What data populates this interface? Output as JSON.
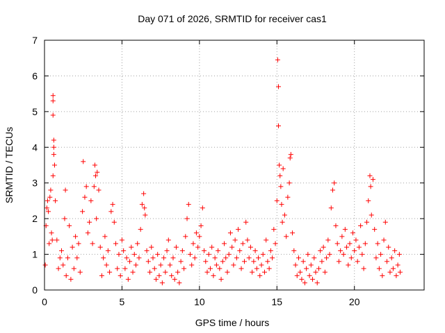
{
  "chart_data": {
    "type": "scatter",
    "title": "Day 071 of 2026, SRMTID for receiver cas1",
    "xlabel": "GPS time / hours",
    "ylabel": "SRMTID / TECUs",
    "xlim": [
      0,
      24.5
    ],
    "ylim": [
      0,
      7
    ],
    "xticks": [
      0,
      5,
      10,
      15,
      20
    ],
    "yticks": [
      0,
      1,
      2,
      3,
      4,
      5,
      6,
      7
    ],
    "grid": true,
    "marker": "+",
    "color": "#ff0000",
    "series": [
      {
        "name": "SRMTID",
        "points": [
          [
            0.05,
            0.7
          ],
          [
            0.1,
            1.8
          ],
          [
            0.15,
            2.3
          ],
          [
            0.2,
            2.5
          ],
          [
            0.25,
            2.2
          ],
          [
            0.3,
            1.3
          ],
          [
            0.35,
            2.6
          ],
          [
            0.4,
            2.8
          ],
          [
            0.45,
            1.6
          ],
          [
            0.5,
            1.4
          ],
          [
            0.55,
            3.2
          ],
          [
            0.55,
            4.9
          ],
          [
            0.55,
            5.3
          ],
          [
            0.55,
            5.45
          ],
          [
            0.6,
            4.0
          ],
          [
            0.6,
            4.2
          ],
          [
            0.6,
            3.8
          ],
          [
            0.65,
            3.5
          ],
          [
            0.7,
            2.5
          ],
          [
            0.8,
            1.4
          ],
          [
            0.9,
            0.6
          ],
          [
            1.0,
            0.9
          ],
          [
            1.1,
            1.1
          ],
          [
            1.2,
            0.7
          ],
          [
            1.3,
            2.0
          ],
          [
            1.35,
            2.8
          ],
          [
            1.4,
            0.4
          ],
          [
            1.5,
            0.9
          ],
          [
            1.6,
            1.8
          ],
          [
            1.7,
            0.3
          ],
          [
            1.8,
            1.2
          ],
          [
            1.9,
            0.6
          ],
          [
            2.0,
            1.5
          ],
          [
            2.1,
            0.9
          ],
          [
            2.2,
            1.3
          ],
          [
            2.3,
            0.5
          ],
          [
            2.45,
            2.2
          ],
          [
            2.5,
            3.6
          ],
          [
            2.6,
            2.6
          ],
          [
            2.7,
            2.9
          ],
          [
            2.8,
            1.6
          ],
          [
            2.9,
            1.9
          ],
          [
            3.0,
            2.5
          ],
          [
            3.1,
            1.3
          ],
          [
            3.2,
            2.9
          ],
          [
            3.25,
            3.5
          ],
          [
            3.3,
            3.2
          ],
          [
            3.35,
            2.0
          ],
          [
            3.4,
            3.3
          ],
          [
            3.5,
            2.8
          ],
          [
            3.6,
            1.2
          ],
          [
            3.7,
            0.4
          ],
          [
            3.8,
            0.9
          ],
          [
            3.9,
            1.5
          ],
          [
            4.0,
            0.7
          ],
          [
            4.1,
            1.1
          ],
          [
            4.2,
            0.5
          ],
          [
            4.3,
            2.2
          ],
          [
            4.4,
            2.4
          ],
          [
            4.5,
            1.9
          ],
          [
            4.6,
            1.3
          ],
          [
            4.7,
            0.6
          ],
          [
            4.8,
            1.0
          ],
          [
            4.9,
            0.4
          ],
          [
            5.0,
            1.4
          ],
          [
            5.1,
            1.1
          ],
          [
            5.2,
            0.6
          ],
          [
            5.3,
            0.9
          ],
          [
            5.4,
            0.3
          ],
          [
            5.5,
            0.8
          ],
          [
            5.6,
            1.2
          ],
          [
            5.7,
            0.5
          ],
          [
            5.8,
            1.0
          ],
          [
            5.9,
            0.7
          ],
          [
            6.0,
            1.3
          ],
          [
            6.1,
            0.9
          ],
          [
            6.2,
            1.7
          ],
          [
            6.3,
            2.4
          ],
          [
            6.4,
            2.7
          ],
          [
            6.45,
            2.3
          ],
          [
            6.5,
            2.1
          ],
          [
            6.6,
            1.1
          ],
          [
            6.7,
            0.8
          ],
          [
            6.8,
            0.5
          ],
          [
            6.9,
            1.2
          ],
          [
            7.0,
            0.9
          ],
          [
            7.1,
            0.6
          ],
          [
            7.2,
            0.3
          ],
          [
            7.3,
            1.0
          ],
          [
            7.4,
            0.4
          ],
          [
            7.5,
            0.7
          ],
          [
            7.6,
            0.2
          ],
          [
            7.7,
            0.9
          ],
          [
            7.8,
            0.5
          ],
          [
            7.9,
            1.1
          ],
          [
            8.0,
            1.4
          ],
          [
            8.1,
            0.7
          ],
          [
            8.2,
            0.4
          ],
          [
            8.3,
            0.9
          ],
          [
            8.4,
            0.3
          ],
          [
            8.5,
            1.2
          ],
          [
            8.6,
            0.5
          ],
          [
            8.7,
            0.2
          ],
          [
            8.8,
            0.8
          ],
          [
            8.9,
            1.1
          ],
          [
            9.0,
            0.6
          ],
          [
            9.1,
            1.5
          ],
          [
            9.2,
            2.0
          ],
          [
            9.3,
            2.4
          ],
          [
            9.4,
            1.0
          ],
          [
            9.5,
            0.7
          ],
          [
            9.6,
            1.3
          ],
          [
            9.7,
            0.9
          ],
          [
            9.8,
            1.6
          ],
          [
            9.9,
            1.2
          ],
          [
            10.0,
            1.5
          ],
          [
            10.1,
            1.8
          ],
          [
            10.2,
            2.3
          ],
          [
            10.3,
            1.1
          ],
          [
            10.4,
            0.8
          ],
          [
            10.5,
            0.5
          ],
          [
            10.6,
            1.0
          ],
          [
            10.7,
            0.6
          ],
          [
            10.8,
            1.2
          ],
          [
            10.9,
            0.4
          ],
          [
            11.0,
            0.9
          ],
          [
            11.1,
            0.7
          ],
          [
            11.2,
            1.1
          ],
          [
            11.3,
            0.6
          ],
          [
            11.4,
            0.3
          ],
          [
            11.5,
            0.8
          ],
          [
            11.6,
            1.3
          ],
          [
            11.7,
            0.9
          ],
          [
            11.8,
            0.5
          ],
          [
            11.9,
            1.0
          ],
          [
            12.0,
            1.6
          ],
          [
            12.1,
            1.2
          ],
          [
            12.2,
            0.7
          ],
          [
            12.3,
            1.4
          ],
          [
            12.4,
            0.9
          ],
          [
            12.5,
            1.7
          ],
          [
            12.6,
            1.1
          ],
          [
            12.7,
            0.6
          ],
          [
            12.8,
            1.3
          ],
          [
            12.9,
            0.8
          ],
          [
            13.0,
            1.9
          ],
          [
            13.1,
            1.4
          ],
          [
            13.2,
            0.9
          ],
          [
            13.3,
            1.2
          ],
          [
            13.4,
            0.5
          ],
          [
            13.5,
            0.8
          ],
          [
            13.6,
            1.1
          ],
          [
            13.7,
            0.6
          ],
          [
            13.8,
            0.9
          ],
          [
            13.9,
            0.4
          ],
          [
            14.0,
            0.7
          ],
          [
            14.1,
            1.0
          ],
          [
            14.2,
            0.5
          ],
          [
            14.3,
            1.4
          ],
          [
            14.4,
            0.8
          ],
          [
            14.5,
            0.6
          ],
          [
            14.6,
            1.1
          ],
          [
            14.7,
            0.9
          ],
          [
            14.8,
            1.7
          ],
          [
            14.9,
            1.3
          ],
          [
            15.0,
            2.5
          ],
          [
            15.05,
            6.45
          ],
          [
            15.1,
            5.7
          ],
          [
            15.1,
            4.6
          ],
          [
            15.15,
            3.5
          ],
          [
            15.2,
            3.2
          ],
          [
            15.25,
            2.9
          ],
          [
            15.3,
            2.4
          ],
          [
            15.35,
            1.9
          ],
          [
            15.4,
            3.4
          ],
          [
            15.5,
            2.1
          ],
          [
            15.6,
            1.5
          ],
          [
            15.7,
            2.6
          ],
          [
            15.8,
            3.0
          ],
          [
            15.85,
            3.7
          ],
          [
            15.9,
            3.8
          ],
          [
            16.0,
            1.6
          ],
          [
            16.1,
            1.1
          ],
          [
            16.2,
            0.7
          ],
          [
            16.3,
            0.4
          ],
          [
            16.4,
            0.9
          ],
          [
            16.5,
            0.5
          ],
          [
            16.6,
            0.3
          ],
          [
            16.7,
            0.8
          ],
          [
            16.8,
            0.2
          ],
          [
            16.9,
            0.6
          ],
          [
            17.0,
            1.0
          ],
          [
            17.1,
            0.4
          ],
          [
            17.2,
            0.7
          ],
          [
            17.3,
            0.3
          ],
          [
            17.4,
            0.9
          ],
          [
            17.5,
            0.5
          ],
          [
            17.6,
            0.2
          ],
          [
            17.7,
            0.6
          ],
          [
            17.8,
            1.1
          ],
          [
            17.9,
            0.8
          ],
          [
            18.0,
            1.2
          ],
          [
            18.1,
            0.5
          ],
          [
            18.2,
            0.9
          ],
          [
            18.3,
            1.4
          ],
          [
            18.4,
            1.0
          ],
          [
            18.5,
            2.3
          ],
          [
            18.6,
            2.8
          ],
          [
            18.7,
            3.0
          ],
          [
            18.8,
            1.8
          ],
          [
            18.9,
            1.3
          ],
          [
            19.0,
            0.8
          ],
          [
            19.1,
            1.1
          ],
          [
            19.2,
            1.5
          ],
          [
            19.3,
            1.0
          ],
          [
            19.4,
            1.7
          ],
          [
            19.5,
            1.2
          ],
          [
            19.6,
            0.7
          ],
          [
            19.7,
            1.3
          ],
          [
            19.8,
            0.9
          ],
          [
            19.9,
            1.6
          ],
          [
            20.0,
            1.1
          ],
          [
            20.1,
            1.4
          ],
          [
            20.2,
            0.8
          ],
          [
            20.3,
            1.2
          ],
          [
            20.4,
            1.8
          ],
          [
            20.5,
            1.0
          ],
          [
            20.6,
            0.6
          ],
          [
            20.7,
            1.3
          ],
          [
            20.8,
            1.9
          ],
          [
            20.9,
            2.5
          ],
          [
            21.0,
            3.2
          ],
          [
            21.05,
            2.9
          ],
          [
            21.1,
            2.1
          ],
          [
            21.2,
            3.1
          ],
          [
            21.3,
            1.7
          ],
          [
            21.4,
            0.9
          ],
          [
            21.5,
            1.3
          ],
          [
            21.6,
            0.6
          ],
          [
            21.7,
            1.0
          ],
          [
            21.8,
            0.4
          ],
          [
            21.9,
            1.4
          ],
          [
            22.0,
            1.9
          ],
          [
            22.1,
            0.8
          ],
          [
            22.2,
            1.2
          ],
          [
            22.3,
            0.5
          ],
          [
            22.4,
            0.9
          ],
          [
            22.5,
            0.6
          ],
          [
            22.6,
            1.1
          ],
          [
            22.7,
            0.4
          ],
          [
            22.8,
            0.7
          ],
          [
            22.9,
            1.0
          ],
          [
            22.95,
            0.5
          ]
        ]
      }
    ]
  }
}
